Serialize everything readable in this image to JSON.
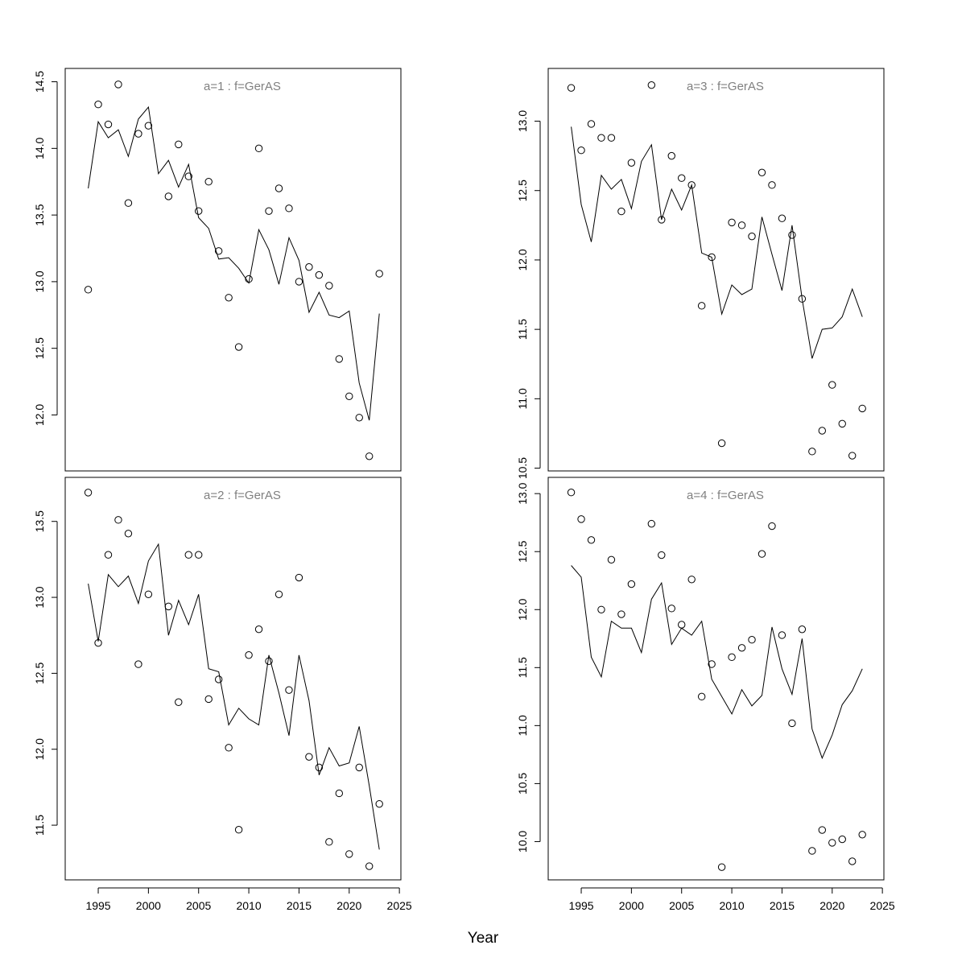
{
  "xlabel": "Year",
  "chart_data": [
    {
      "type": "scatter+line",
      "title": "a=1  :  f=GerAS",
      "position": "top-left",
      "xlim": [
        1991.71,
        2025.15
      ],
      "ylim": [
        11.58,
        14.6
      ],
      "yticks": [
        12.0,
        12.5,
        13.0,
        13.5,
        14.0,
        14.5
      ],
      "xticks": [],
      "points": {
        "x": [
          1994,
          1995,
          1996,
          1997,
          1998,
          1999,
          2000,
          2002,
          2003,
          2004,
          2005,
          2006,
          2007,
          2008,
          2009,
          2010,
          2011,
          2012,
          2013,
          2014,
          2015,
          2016,
          2017,
          2018,
          2019,
          2020,
          2021,
          2022,
          2023
        ],
        "y": [
          12.94,
          14.33,
          14.18,
          14.48,
          13.59,
          14.11,
          14.17,
          13.64,
          14.03,
          13.79,
          13.53,
          13.75,
          13.23,
          12.88,
          12.51,
          13.02,
          14.0,
          13.53,
          13.7,
          13.55,
          13.0,
          13.11,
          13.05,
          12.97,
          12.42,
          12.14,
          11.98,
          11.69,
          13.06
        ]
      },
      "line": {
        "x": [
          1994,
          1995,
          1996,
          1997,
          1998,
          1999,
          2000,
          2001,
          2002,
          2003,
          2004,
          2005,
          2006,
          2007,
          2008,
          2009,
          2010,
          2011,
          2012,
          2013,
          2014,
          2015,
          2016,
          2017,
          2018,
          2019,
          2020,
          2021,
          2022,
          2023
        ],
        "y": [
          13.7,
          14.2,
          14.08,
          14.14,
          13.94,
          14.22,
          14.31,
          13.81,
          13.91,
          13.71,
          13.88,
          13.48,
          13.4,
          13.17,
          13.18,
          13.1,
          12.99,
          13.39,
          13.24,
          12.98,
          13.33,
          13.16,
          12.77,
          12.92,
          12.75,
          12.73,
          12.78,
          12.24,
          11.96,
          12.76
        ]
      }
    },
    {
      "type": "scatter+line",
      "title": "a=3  :  f=GerAS",
      "position": "top-right",
      "xlim": [
        1991.71,
        2025.15
      ],
      "ylim": [
        10.48,
        13.38
      ],
      "yticks": [
        10.5,
        11.0,
        11.5,
        12.0,
        12.5,
        13.0
      ],
      "xticks": [],
      "points": {
        "x": [
          1994,
          1995,
          1996,
          1997,
          1998,
          1999,
          2000,
          2002,
          2003,
          2004,
          2005,
          2006,
          2007,
          2008,
          2009,
          2010,
          2011,
          2012,
          2013,
          2014,
          2015,
          2016,
          2017,
          2018,
          2019,
          2020,
          2021,
          2022,
          2023
        ],
        "y": [
          13.24,
          12.79,
          12.98,
          12.88,
          12.88,
          12.35,
          12.7,
          13.26,
          12.29,
          12.75,
          12.59,
          12.54,
          11.67,
          12.02,
          10.68,
          12.27,
          12.25,
          12.17,
          12.63,
          12.54,
          12.3,
          12.18,
          11.72,
          10.62,
          10.77,
          11.1,
          10.82,
          10.59,
          10.93
        ]
      },
      "line": {
        "x": [
          1994,
          1995,
          1996,
          1997,
          1998,
          1999,
          2000,
          2001,
          2002,
          2003,
          2004,
          2005,
          2006,
          2007,
          2008,
          2009,
          2010,
          2011,
          2012,
          2013,
          2014,
          2015,
          2016,
          2017,
          2018,
          2019,
          2020,
          2021,
          2022,
          2023
        ],
        "y": [
          12.96,
          12.4,
          12.13,
          12.61,
          12.51,
          12.58,
          12.37,
          12.71,
          12.83,
          12.29,
          12.51,
          12.36,
          12.54,
          12.05,
          12.02,
          11.61,
          11.82,
          11.75,
          11.79,
          12.31,
          12.04,
          11.78,
          12.25,
          11.72,
          11.29,
          11.5,
          11.51,
          11.59,
          11.79,
          11.59
        ]
      }
    },
    {
      "type": "scatter+line",
      "title": "a=2  :  f=GerAS",
      "position": "bottom-left",
      "xlim": [
        1991.71,
        2025.15
      ],
      "ylim": [
        11.14,
        13.79
      ],
      "yticks": [
        11.5,
        12.0,
        12.5,
        13.0,
        13.5
      ],
      "xticks": [
        1995,
        2000,
        2005,
        2010,
        2015,
        2020,
        2025
      ],
      "points": {
        "x": [
          1994,
          1995,
          1996,
          1997,
          1998,
          1999,
          2000,
          2002,
          2003,
          2004,
          2005,
          2006,
          2007,
          2008,
          2009,
          2010,
          2011,
          2012,
          2013,
          2014,
          2015,
          2016,
          2017,
          2018,
          2019,
          2020,
          2021,
          2022,
          2023
        ],
        "y": [
          13.69,
          12.7,
          13.28,
          13.51,
          13.42,
          12.56,
          13.02,
          12.94,
          12.31,
          13.28,
          13.28,
          12.33,
          12.46,
          12.01,
          11.47,
          12.62,
          12.79,
          12.58,
          13.02,
          12.39,
          13.13,
          11.95,
          11.88,
          11.39,
          11.71,
          11.31,
          11.88,
          11.23,
          11.64
        ]
      },
      "line": {
        "x": [
          1994,
          1995,
          1996,
          1997,
          1998,
          1999,
          2000,
          2001,
          2002,
          2003,
          2004,
          2005,
          2006,
          2007,
          2008,
          2009,
          2010,
          2011,
          2012,
          2013,
          2014,
          2015,
          2016,
          2017,
          2018,
          2019,
          2020,
          2021,
          2022,
          2023
        ],
        "y": [
          13.09,
          12.71,
          13.15,
          13.07,
          13.14,
          12.96,
          13.24,
          13.35,
          12.75,
          12.98,
          12.82,
          13.02,
          12.53,
          12.51,
          12.16,
          12.27,
          12.2,
          12.16,
          12.62,
          12.37,
          12.09,
          12.62,
          12.32,
          11.83,
          12.01,
          11.89,
          11.91,
          12.15,
          11.76,
          11.34
        ]
      }
    },
    {
      "type": "scatter+line",
      "title": "a=4  :  f=GerAS",
      "position": "bottom-right",
      "xlim": [
        1991.71,
        2025.15
      ],
      "ylim": [
        9.67,
        13.14
      ],
      "yticks": [
        10.0,
        10.5,
        11.0,
        11.5,
        12.0,
        12.5,
        13.0
      ],
      "xticks": [
        1995,
        2000,
        2005,
        2010,
        2015,
        2020,
        2025
      ],
      "points": {
        "x": [
          1994,
          1995,
          1996,
          1997,
          1998,
          1999,
          2000,
          2002,
          2003,
          2004,
          2005,
          2006,
          2007,
          2008,
          2009,
          2010,
          2011,
          2012,
          2013,
          2014,
          2015,
          2016,
          2017,
          2018,
          2019,
          2020,
          2021,
          2022,
          2023
        ],
        "y": [
          13.01,
          12.78,
          12.6,
          12.0,
          12.43,
          11.96,
          12.22,
          12.74,
          12.47,
          12.01,
          11.87,
          12.26,
          11.25,
          11.53,
          9.78,
          11.59,
          11.67,
          11.74,
          12.48,
          12.72,
          11.78,
          11.02,
          11.83,
          9.92,
          10.1,
          9.99,
          10.02,
          9.83,
          10.06
        ]
      },
      "line": {
        "x": [
          1994,
          1995,
          1996,
          1997,
          1998,
          1999,
          2000,
          2001,
          2002,
          2003,
          2004,
          2005,
          2006,
          2007,
          2008,
          2009,
          2010,
          2011,
          2012,
          2013,
          2014,
          2015,
          2016,
          2017,
          2018,
          2019,
          2020,
          2021,
          2022,
          2023
        ],
        "y": [
          12.38,
          12.28,
          11.59,
          11.42,
          11.9,
          11.84,
          11.84,
          11.63,
          12.09,
          12.23,
          11.7,
          11.84,
          11.78,
          11.9,
          11.4,
          11.25,
          11.1,
          11.31,
          11.17,
          11.26,
          11.85,
          11.49,
          11.27,
          11.75,
          10.97,
          10.72,
          10.92,
          11.18,
          11.3,
          11.49
        ]
      }
    }
  ],
  "colors": {
    "title": "#808080",
    "ink": "#000000"
  }
}
